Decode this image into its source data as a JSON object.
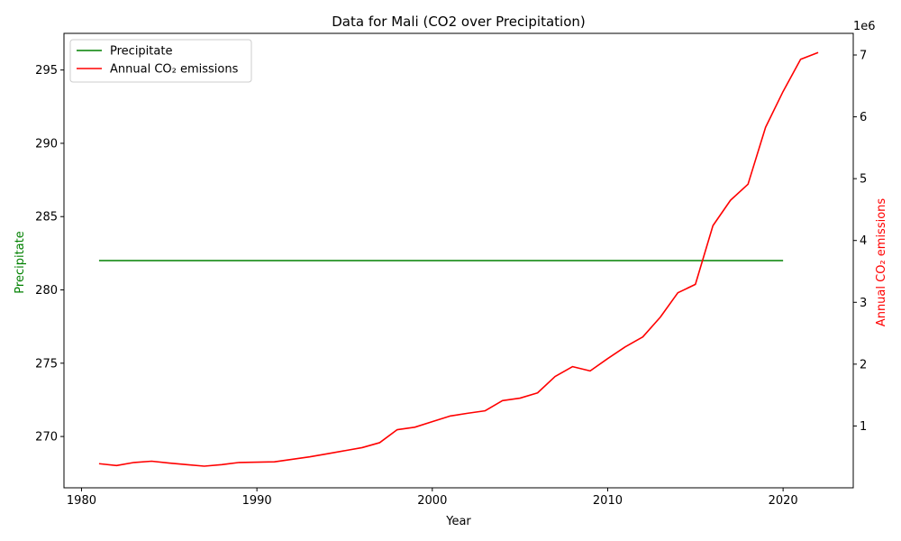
{
  "chart_data": {
    "type": "line",
    "title": "Data for Mali (CO2 over Precipitation)",
    "xlabel": "Year",
    "ylabel_left": "Precipitate",
    "ylabel_right": "Annual CO₂ emissions",
    "right_axis_multiplier": "1e6",
    "xlim": [
      1979,
      2024
    ],
    "ylim_left": [
      266.5,
      297.5
    ],
    "ylim_right": [
      0,
      7350000
    ],
    "x_ticks": [
      1980,
      1990,
      2000,
      2010,
      2020
    ],
    "y_ticks_left": [
      270,
      275,
      280,
      285,
      290,
      295
    ],
    "y_ticks_right": [
      1,
      2,
      3,
      4,
      5,
      6,
      7
    ],
    "y_tick_right_scale": 1000000,
    "legend_position": "upper left",
    "series": [
      {
        "name": "Precipitate",
        "axis": "left",
        "color": "#008000",
        "x": [
          1981,
          1982,
          1983,
          1984,
          1985,
          1986,
          1987,
          1988,
          1989,
          1990,
          1991,
          1992,
          1993,
          1994,
          1995,
          1996,
          1997,
          1998,
          1999,
          2000,
          2001,
          2002,
          2003,
          2004,
          2005,
          2006,
          2007,
          2008,
          2009,
          2010,
          2011,
          2012,
          2013,
          2014,
          2015,
          2016,
          2017,
          2018,
          2019,
          2020
        ],
        "values": [
          282,
          282,
          282,
          282,
          282,
          282,
          282,
          282,
          282,
          282,
          282,
          282,
          282,
          282,
          282,
          282,
          282,
          282,
          282,
          282,
          282,
          282,
          282,
          282,
          282,
          282,
          282,
          282,
          282,
          282,
          282,
          282,
          282,
          282,
          282,
          282,
          282,
          282,
          282,
          282
        ]
      },
      {
        "name": "Annual CO₂ emissions",
        "axis": "right",
        "color": "#ff0000",
        "x": [
          1981,
          1982,
          1983,
          1984,
          1985,
          1986,
          1987,
          1988,
          1989,
          1990,
          1991,
          1992,
          1993,
          1994,
          1995,
          1996,
          1997,
          1998,
          1999,
          2000,
          2001,
          2002,
          2003,
          2004,
          2005,
          2006,
          2007,
          2008,
          2009,
          2010,
          2011,
          2012,
          2013,
          2014,
          2015,
          2016,
          2017,
          2018,
          2019,
          2020,
          2021,
          2022
        ],
        "values": [
          390000,
          360000,
          410000,
          430000,
          400000,
          375000,
          350000,
          375000,
          410000,
          415000,
          420000,
          460000,
          500000,
          550000,
          600000,
          650000,
          730000,
          940000,
          980000,
          1070000,
          1160000,
          1205000,
          1245000,
          1410000,
          1450000,
          1535000,
          1800000,
          1960000,
          1890000,
          2090000,
          2280000,
          2440000,
          2760000,
          3155000,
          3290000,
          4240000,
          4650000,
          4910000,
          5830000,
          6410000,
          6930000,
          7040000
        ]
      }
    ]
  }
}
